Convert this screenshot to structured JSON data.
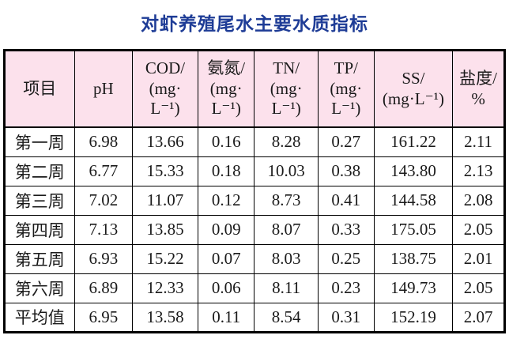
{
  "title": "对虾养殖尾水主要水质指标",
  "colors": {
    "title_text": "#1e3c96",
    "header_background": "#fce1ec",
    "table_border": "#000000",
    "page_background": "#ffffff"
  },
  "table": {
    "columns": [
      {
        "id": "item",
        "label": "项目"
      },
      {
        "id": "ph",
        "label": "pH"
      },
      {
        "id": "cod",
        "label": "COD/\n(mg·\nL⁻¹)"
      },
      {
        "id": "nh3n",
        "label": "氨氮/\n(mg·\nL⁻¹)"
      },
      {
        "id": "tn",
        "label": "TN/\n(mg·\nL⁻¹)"
      },
      {
        "id": "tp",
        "label": "TP/\n(mg·\nL⁻¹)"
      },
      {
        "id": "ss",
        "label": "SS/\n(mg·L⁻¹)"
      },
      {
        "id": "salinity",
        "label": "盐度/\n%"
      }
    ],
    "rows": [
      [
        "第一周",
        "6.98",
        "13.66",
        "0.16",
        "8.28",
        "0.27",
        "161.22",
        "2.11"
      ],
      [
        "第二周",
        "6.77",
        "15.33",
        "0.18",
        "10.03",
        "0.38",
        "143.80",
        "2.13"
      ],
      [
        "第三周",
        "7.02",
        "11.07",
        "0.12",
        "8.73",
        "0.41",
        "144.58",
        "2.08"
      ],
      [
        "第四周",
        "7.13",
        "13.85",
        "0.09",
        "8.07",
        "0.33",
        "175.05",
        "2.05"
      ],
      [
        "第五周",
        "6.93",
        "15.22",
        "0.07",
        "8.03",
        "0.25",
        "138.75",
        "2.01"
      ],
      [
        "第六周",
        "6.89",
        "12.33",
        "0.06",
        "8.11",
        "0.23",
        "149.73",
        "2.05"
      ],
      [
        "平均值",
        "6.95",
        "13.58",
        "0.11",
        "8.54",
        "0.31",
        "152.19",
        "2.07"
      ]
    ]
  }
}
